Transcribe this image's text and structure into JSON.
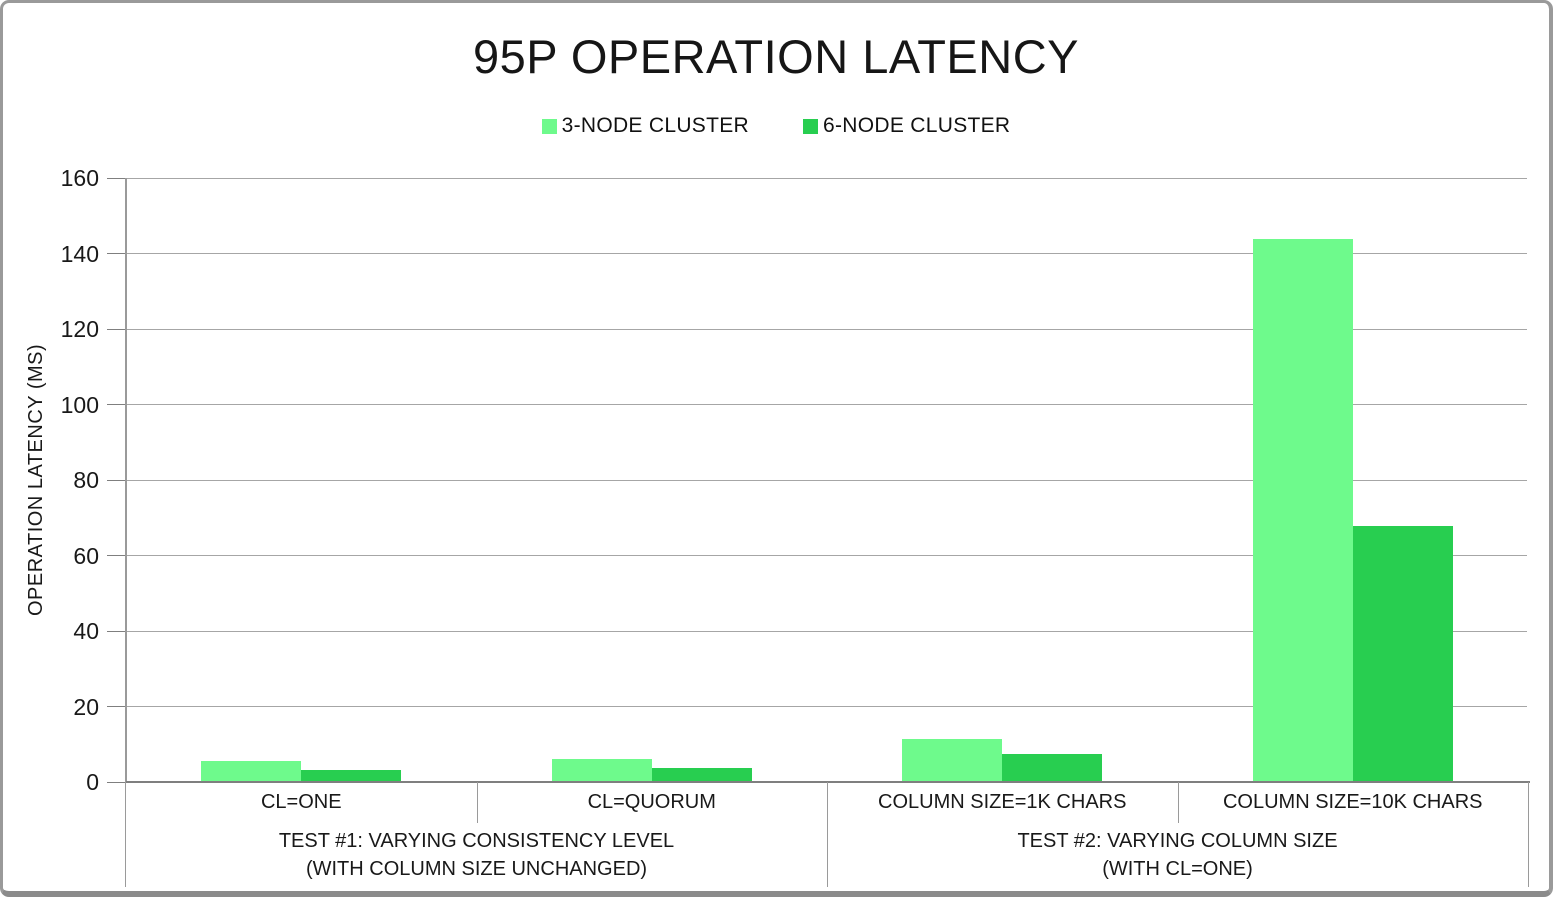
{
  "window": {
    "background": "#ffffff",
    "border_color": "#9a9a9a"
  },
  "chart_data": {
    "type": "bar",
    "title": "95P OPERATION LATENCY",
    "ylabel": "OPERATION LATENCY (MS)",
    "xlabel": "",
    "ylim": [
      0,
      160
    ],
    "yticks": [
      0,
      20,
      40,
      60,
      80,
      100,
      120,
      140,
      160
    ],
    "grid": true,
    "legend_position": "top-center",
    "categories": [
      "CL=ONE",
      "CL=QUORUM",
      "COLUMN SIZE=1K CHARS",
      "COLUMN SIZE=10K CHARS"
    ],
    "category_groups": [
      {
        "label": "TEST #1: VARYING CONSISTENCY LEVEL\n(WITH COLUMN SIZE UNCHANGED)",
        "categories": [
          "CL=ONE",
          "CL=QUORUM"
        ]
      },
      {
        "label": "TEST #2: VARYING COLUMN SIZE\n(WITH CL=ONE)",
        "categories": [
          "COLUMN SIZE=1K CHARS",
          "COLUMN SIZE=10K CHARS"
        ]
      }
    ],
    "series": [
      {
        "name": "3-NODE CLUSTER",
        "color": "#6efa8c",
        "values": [
          5.5,
          6.2,
          11.3,
          143.8
        ]
      },
      {
        "name": "6-NODE CLUSTER",
        "color": "#28ce50",
        "values": [
          3.2,
          3.8,
          7.5,
          67.9
        ]
      }
    ],
    "colors": {
      "gridline": "#a6a6a6",
      "axis": "#7f7f7f",
      "table_border": "#9a9a9a",
      "text": "#191919"
    }
  }
}
